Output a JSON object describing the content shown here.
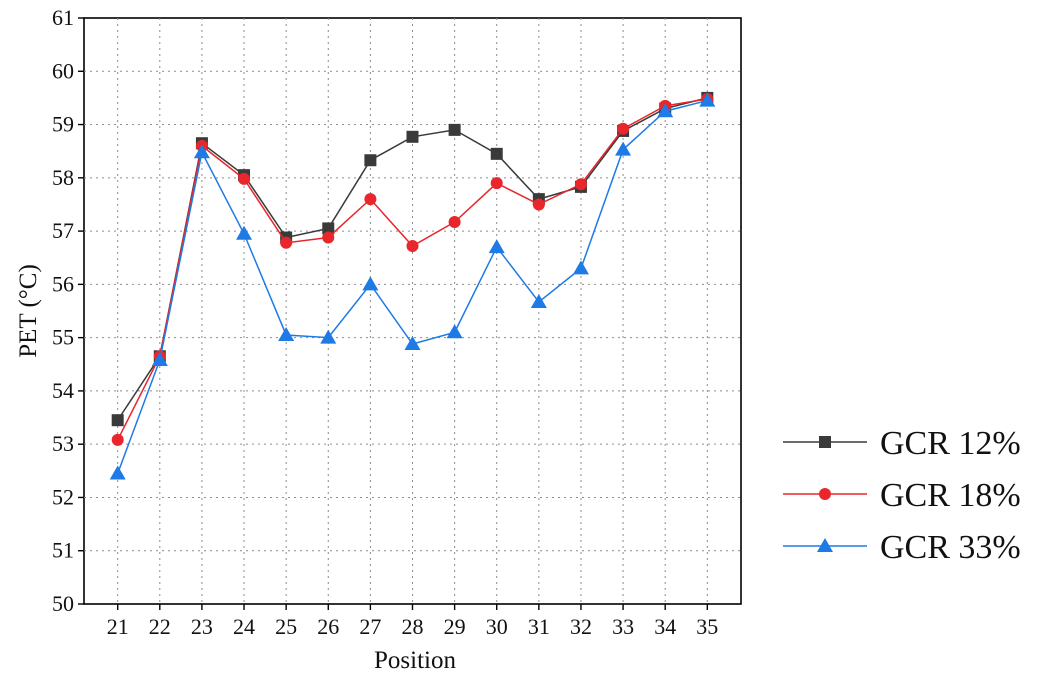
{
  "chart_data": {
    "type": "line",
    "title": "",
    "xlabel": "Position",
    "ylabel": "PET (°C)",
    "x": [
      21,
      22,
      23,
      24,
      25,
      26,
      27,
      28,
      29,
      30,
      31,
      32,
      33,
      34,
      35
    ],
    "xlim": [
      20.2,
      35.8
    ],
    "ylim": [
      50,
      61
    ],
    "yticks": [
      50,
      51,
      52,
      53,
      54,
      55,
      56,
      57,
      58,
      59,
      60,
      61
    ],
    "grid": true,
    "legend_position": "right",
    "series": [
      {
        "name": "GCR 12%",
        "color": "#3a3a3a",
        "marker": "square",
        "values": [
          53.45,
          54.65,
          58.65,
          58.05,
          56.88,
          57.05,
          58.33,
          58.77,
          58.9,
          58.45,
          57.6,
          57.83,
          58.88,
          59.3,
          59.5
        ]
      },
      {
        "name": "GCR 18%",
        "color": "#e8262b",
        "marker": "circle",
        "values": [
          53.08,
          54.65,
          58.6,
          57.98,
          56.78,
          56.88,
          57.6,
          56.72,
          57.17,
          57.9,
          57.5,
          57.88,
          58.92,
          59.35,
          59.48
        ]
      },
      {
        "name": "GCR 33%",
        "color": "#1e7be6",
        "marker": "triangle",
        "values": [
          52.45,
          54.58,
          58.48,
          56.95,
          55.05,
          55.0,
          56.0,
          54.88,
          55.1,
          56.7,
          55.67,
          56.3,
          58.53,
          59.25,
          59.45
        ]
      }
    ]
  }
}
